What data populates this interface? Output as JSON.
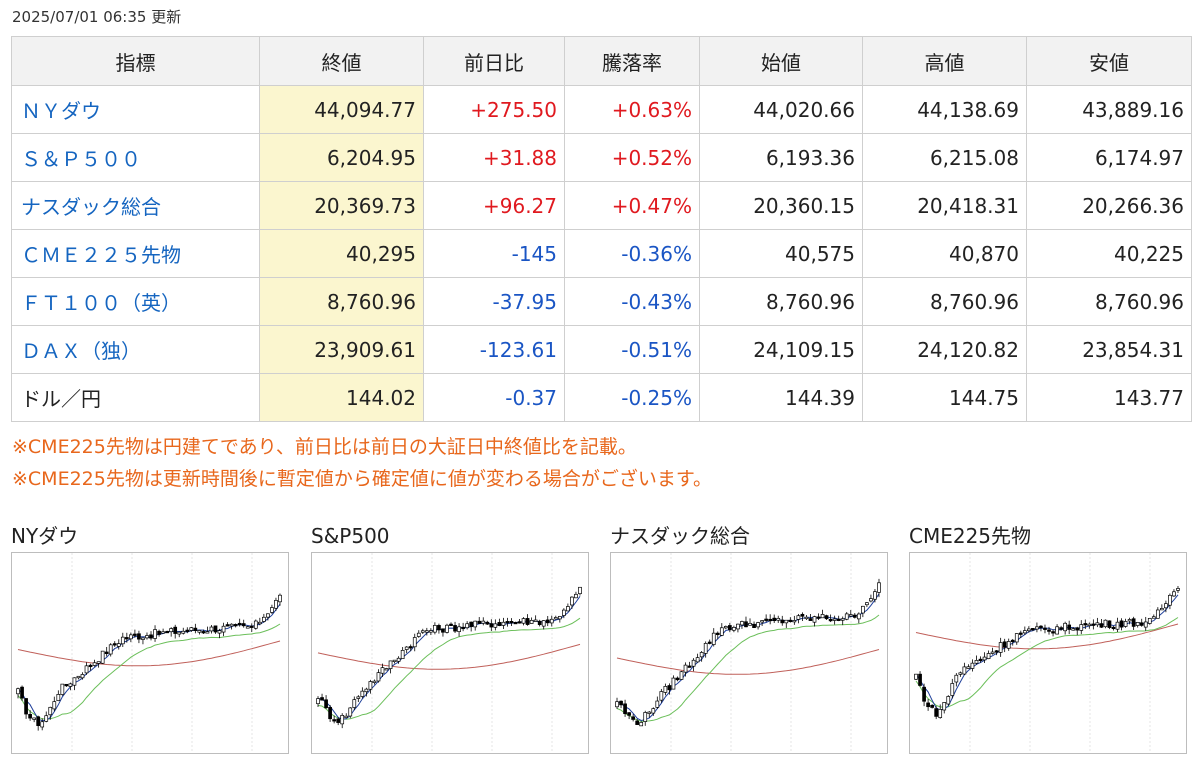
{
  "updated": "2025/07/01 06:35 更新",
  "table": {
    "headers": [
      "指標",
      "終値",
      "前日比",
      "騰落率",
      "始値",
      "高値",
      "安値"
    ],
    "rows": [
      {
        "name": "ＮＹダウ",
        "link": true,
        "close": "44,094.77",
        "change": "+275.50",
        "rate": "+0.63%",
        "open": "44,020.66",
        "high": "44,138.69",
        "low": "43,889.16",
        "trend": "pos"
      },
      {
        "name": "Ｓ＆Ｐ５００",
        "link": true,
        "close": "6,204.95",
        "change": "+31.88",
        "rate": "+0.52%",
        "open": "6,193.36",
        "high": "6,215.08",
        "low": "6,174.97",
        "trend": "pos"
      },
      {
        "name": "ナスダック総合",
        "link": true,
        "close": "20,369.73",
        "change": "+96.27",
        "rate": "+0.47%",
        "open": "20,360.15",
        "high": "20,418.31",
        "low": "20,266.36",
        "trend": "pos"
      },
      {
        "name": "ＣＭＥ２２５先物",
        "link": true,
        "close": "40,295",
        "change": "-145",
        "rate": "-0.36%",
        "open": "40,575",
        "high": "40,870",
        "low": "40,225",
        "trend": "neg"
      },
      {
        "name": "ＦＴ１００（英）",
        "link": true,
        "close": "8,760.96",
        "change": "-37.95",
        "rate": "-0.43%",
        "open": "8,760.96",
        "high": "8,760.96",
        "low": "8,760.96",
        "trend": "neg"
      },
      {
        "name": "ＤＡＸ（独）",
        "link": true,
        "close": "23,909.61",
        "change": "-123.61",
        "rate": "-0.51%",
        "open": "24,109.15",
        "high": "24,120.82",
        "low": "23,854.31",
        "trend": "neg"
      },
      {
        "name": "ドル／円",
        "link": false,
        "close": "144.02",
        "change": "-0.37",
        "rate": "-0.25%",
        "open": "144.39",
        "high": "144.75",
        "low": "143.77",
        "trend": "neg"
      }
    ]
  },
  "notes": [
    "※CME225先物は円建てであり、前日比は前日の大証日中終値比を記載。",
    "※CME225先物は更新時間後に暫定値から確定値に値が変わる場合がございます。"
  ],
  "charts": [
    {
      "title": "NYダウ"
    },
    {
      "title": "S&P500"
    },
    {
      "title": "ナスダック総合"
    },
    {
      "title": "CME225先物"
    }
  ],
  "colors": {
    "link": "#1565c0",
    "positive": "#e0191f",
    "negative": "#1a55c4",
    "note": "#e8671c",
    "close_column_bg": "#fbf6cf",
    "header_bg": "#f2f2f2",
    "ma_short": "#1f3f9a",
    "ma_mid": "#6bbf5a",
    "ma_long": "#c0605a"
  }
}
